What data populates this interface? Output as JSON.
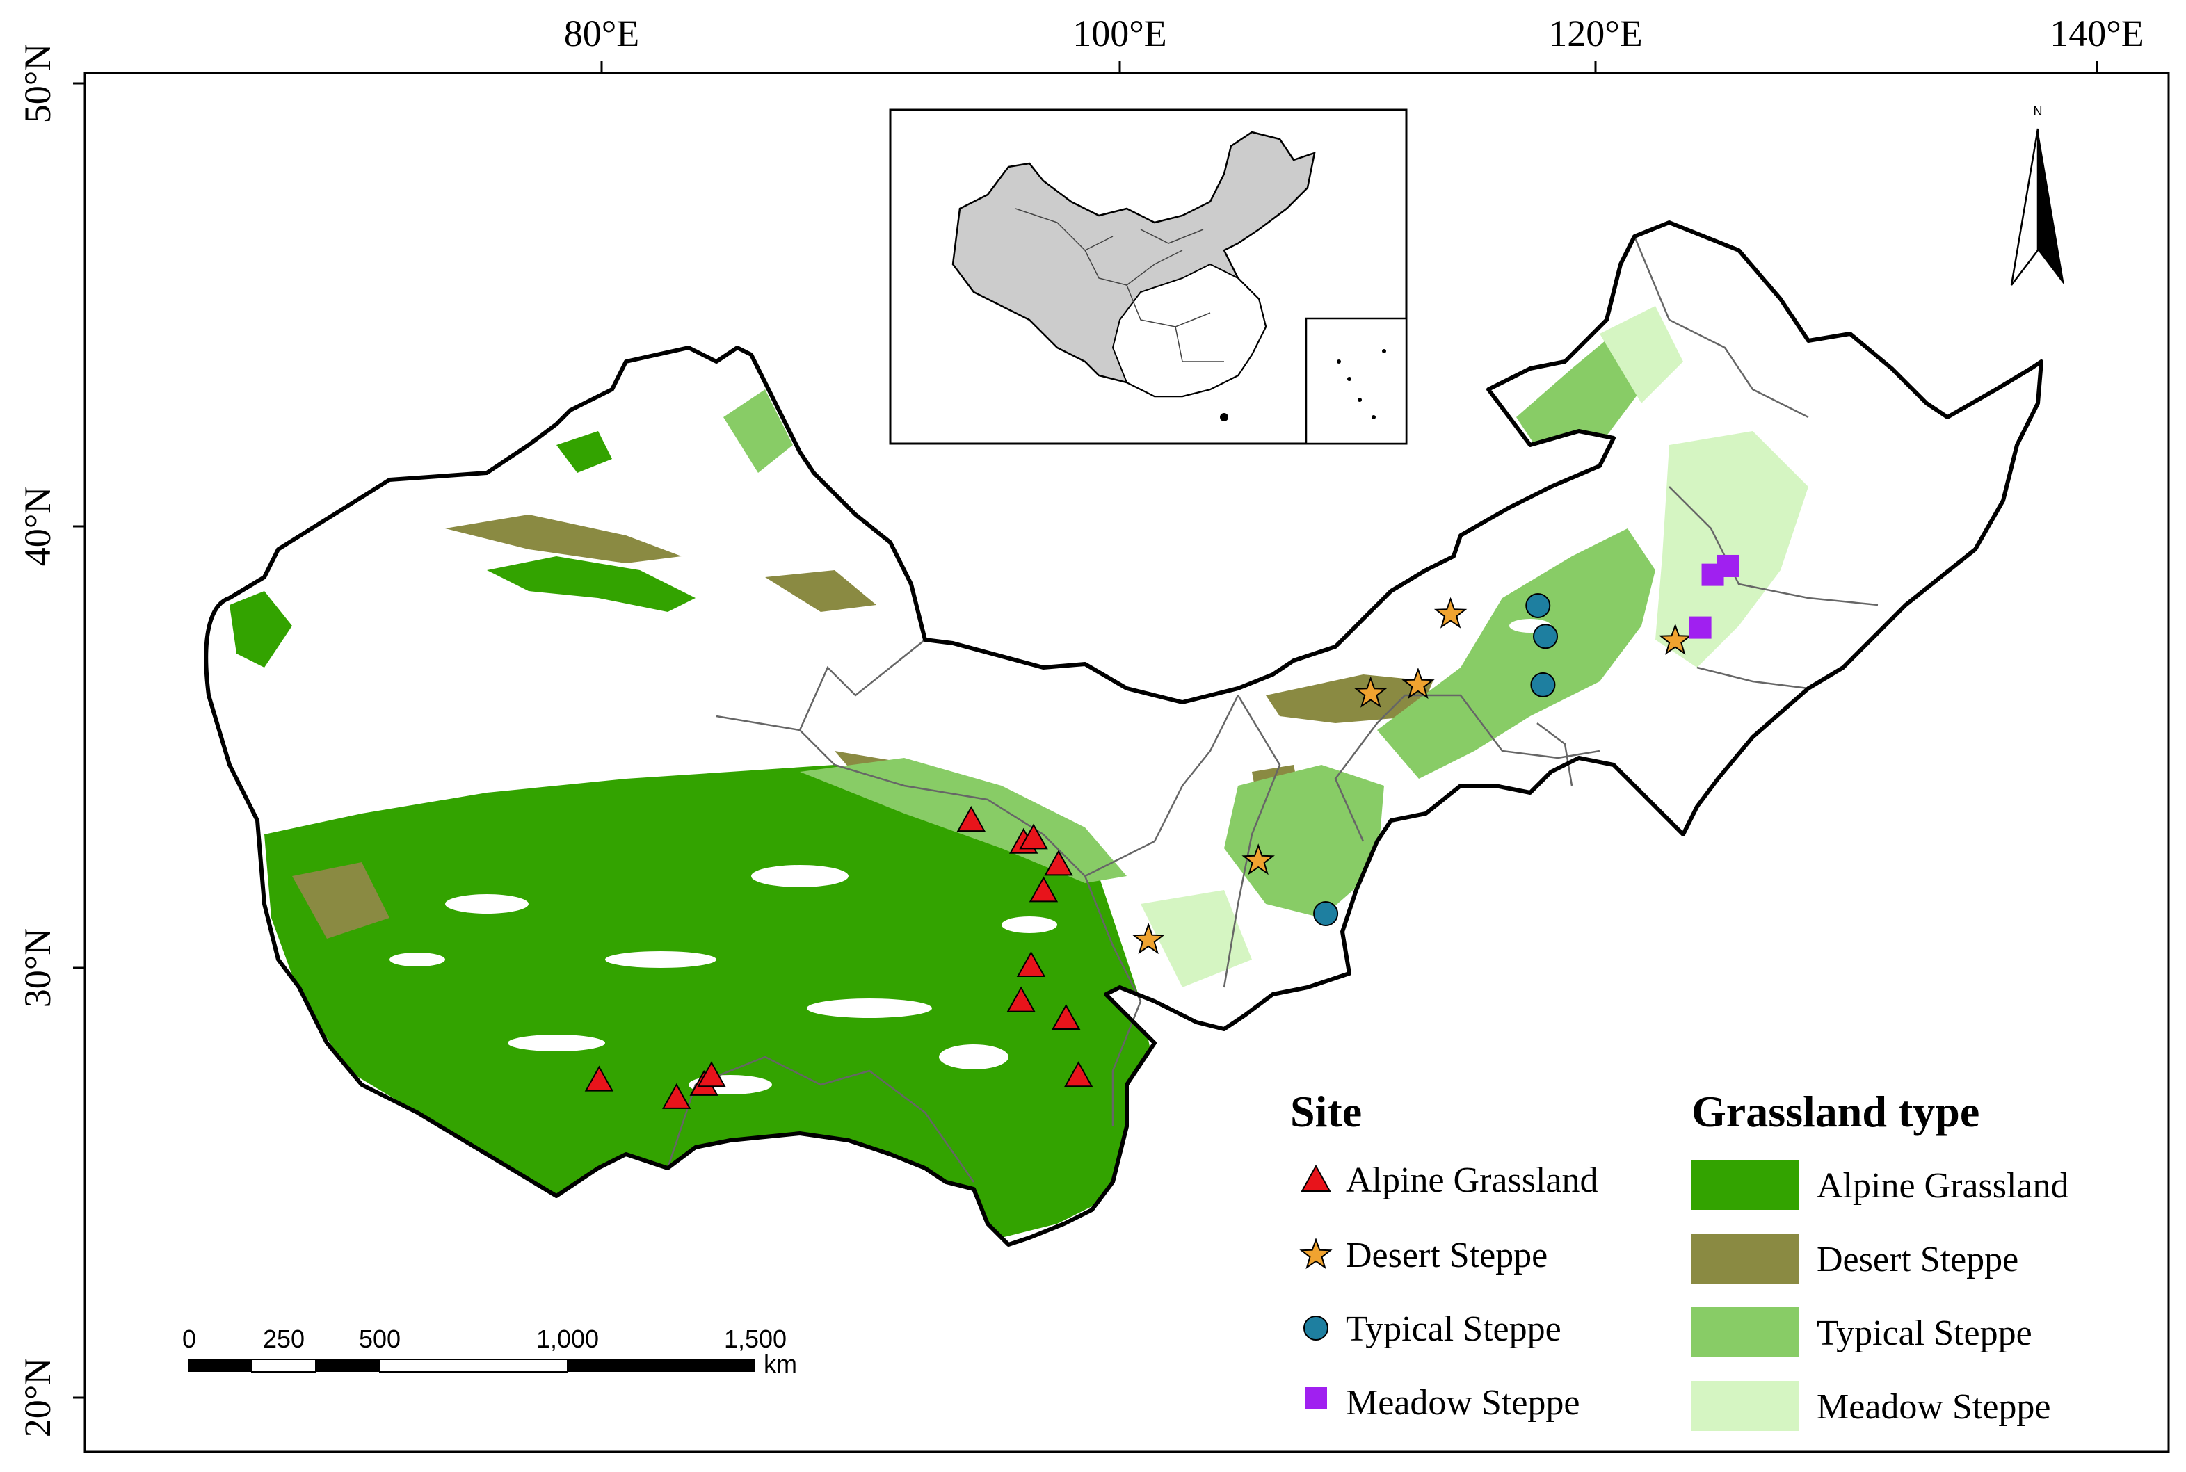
{
  "map": {
    "axes": {
      "top_ticks": [
        "80°E",
        "100°E",
        "120°E",
        "140°E"
      ],
      "left_ticks": [
        "50°N",
        "40°N",
        "30°N",
        "20°N"
      ]
    },
    "north_arrow": {
      "label": "N",
      "icon": "north-arrow-icon"
    },
    "scale_bar": {
      "ticks": [
        "0",
        "250",
        "500",
        "1,000",
        "1,500"
      ],
      "unit": "km"
    },
    "colors": {
      "alpine_grassland": "#33a300",
      "desert_steppe": "#8a8a42",
      "typical_steppe": "#88cc66",
      "meadow_steppe": "#d5f5c2",
      "site_alpine": "#e8141b",
      "site_desert": "#f0a330",
      "site_typical": "#1e7fa0",
      "site_meadow": "#a020f0",
      "inset_land": "#cccccc"
    },
    "legend_sites": {
      "title": "Site",
      "items": [
        {
          "label": "Alpine Grassland",
          "icon": "triangle-marker-icon"
        },
        {
          "label": "Desert Steppe",
          "icon": "star-marker-icon"
        },
        {
          "label": "Typical Steppe",
          "icon": "circle-marker-icon"
        },
        {
          "label": "Meadow Steppe",
          "icon": "square-marker-icon"
        }
      ]
    },
    "legend_types": {
      "title": "Grassland type",
      "items": [
        {
          "label": "Alpine Grassland"
        },
        {
          "label": "Desert Steppe"
        },
        {
          "label": "Typical Steppe"
        },
        {
          "label": "Meadow Steppe"
        }
      ]
    },
    "sites": {
      "alpine": [
        [
          94.8,
          33.3
        ],
        [
          96.9,
          32.8
        ],
        [
          97.3,
          32.9
        ],
        [
          98.3,
          32.3
        ],
        [
          97.7,
          31.7
        ],
        [
          97.2,
          30.0
        ],
        [
          96.8,
          29.2
        ],
        [
          98.6,
          28.8
        ],
        [
          99.1,
          27.5
        ],
        [
          79.9,
          27.4
        ],
        [
          83.0,
          27.0
        ],
        [
          84.1,
          27.3
        ],
        [
          84.4,
          27.5
        ]
      ],
      "desert": [
        [
          114.0,
          38.0
        ],
        [
          110.8,
          36.2
        ],
        [
          112.7,
          36.4
        ],
        [
          123.0,
          37.4
        ],
        [
          106.3,
          32.4
        ],
        [
          101.9,
          30.6
        ]
      ],
      "typical": [
        [
          117.5,
          38.2
        ],
        [
          117.8,
          37.5
        ],
        [
          117.7,
          36.4
        ],
        [
          109.0,
          31.2
        ]
      ],
      "meadow": [
        [
          124.5,
          38.9
        ],
        [
          125.1,
          39.1
        ],
        [
          124.0,
          37.7
        ]
      ]
    }
  }
}
